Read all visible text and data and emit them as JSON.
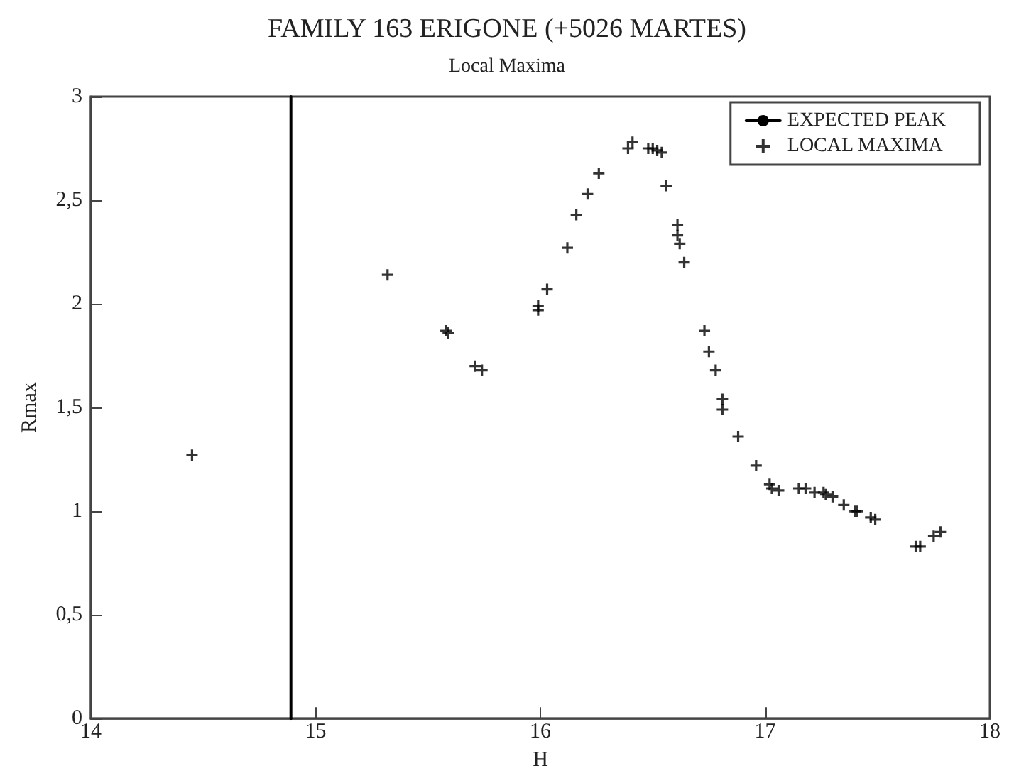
{
  "chart_data": {
    "type": "scatter",
    "title": "FAMILY 163 ERIGONE (+5026 MARTES)",
    "subtitle": "Local Maxima",
    "xlabel": "H",
    "ylabel": "Rmax",
    "xlim": [
      14,
      18
    ],
    "xticks": [
      14,
      15,
      16,
      17,
      18
    ],
    "ylim": [
      0,
      3
    ],
    "yticks": [
      0,
      {
        "value": 0.5,
        "label": "0,5"
      },
      1,
      {
        "value": 1.5,
        "label": "1,5"
      },
      2,
      {
        "value": 2.5,
        "label": "2,5"
      },
      3
    ],
    "grid": false,
    "legend": "top right",
    "marker": "cross",
    "series": [
      {
        "name": "EXPECTED PEAK",
        "type": "line",
        "color": "#000000",
        "line_style": "solid",
        "marker": "none",
        "x": [
          14.89,
          14.89
        ],
        "values": [
          0,
          3
        ]
      },
      {
        "name": "LOCAL MAXIMA",
        "color": "#000000",
        "x": [
          14.45,
          15.32,
          15.58,
          15.59,
          15.71,
          15.74,
          15.99,
          15.99,
          16.03,
          16.12,
          16.16,
          16.21,
          16.26,
          16.39,
          16.41,
          16.48,
          16.5,
          16.52,
          16.54,
          16.56,
          16.61,
          16.61,
          16.62,
          16.64,
          16.73,
          16.75,
          16.78,
          16.81,
          16.81,
          16.88,
          16.96,
          17.02,
          17.03,
          17.06,
          17.15,
          17.18,
          17.22,
          17.26,
          17.27,
          17.3,
          17.35,
          17.4,
          17.41,
          17.47,
          17.49,
          17.67,
          17.69,
          17.75,
          17.78
        ],
        "values": [
          1.27,
          2.14,
          1.87,
          1.86,
          1.7,
          1.68,
          1.99,
          1.97,
          2.07,
          2.27,
          2.43,
          2.53,
          2.63,
          2.75,
          2.78,
          2.75,
          2.75,
          2.74,
          2.73,
          2.57,
          2.38,
          2.33,
          2.29,
          2.2,
          1.87,
          1.77,
          1.68,
          1.54,
          1.49,
          1.36,
          1.22,
          1.13,
          1.11,
          1.1,
          1.11,
          1.11,
          1.09,
          1.09,
          1.08,
          1.07,
          1.03,
          1.0,
          1.0,
          0.97,
          0.96,
          0.83,
          0.83,
          0.88,
          0.9
        ]
      }
    ]
  }
}
